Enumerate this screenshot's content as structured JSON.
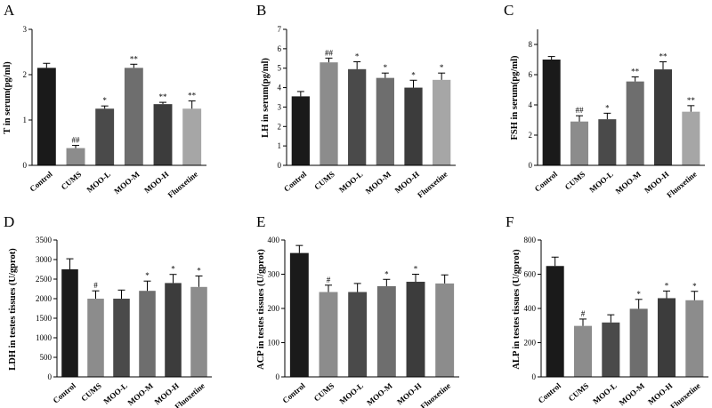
{
  "chart_data": [
    {
      "panel": "A",
      "type": "bar",
      "ylabel": "T in serum(pg/ml)",
      "ylim": [
        0,
        3
      ],
      "yticks": [
        0,
        1,
        2,
        3
      ],
      "categories": [
        "Control",
        "CUMS",
        "MOO-L",
        "MOO-M",
        "MOO-H",
        "Fluoxetine"
      ],
      "values": [
        2.15,
        0.38,
        1.25,
        2.15,
        1.35,
        1.25
      ],
      "errors": [
        0.1,
        0.06,
        0.06,
        0.08,
        0.04,
        0.17
      ],
      "significance": [
        "",
        "##",
        "*",
        "**",
        "**",
        "**"
      ],
      "colors": [
        "#1a1a1a",
        "#8c8c8c",
        "#4a4a4a",
        "#6e6e6e",
        "#3c3c3c",
        "#a6a6a6"
      ]
    },
    {
      "panel": "B",
      "type": "bar",
      "ylabel": "LH in serum(pg/ml)",
      "ylim": [
        0,
        7
      ],
      "yticks": [
        0,
        1,
        2,
        3,
        4,
        5,
        6,
        7
      ],
      "categories": [
        "Control",
        "CUMS",
        "MOO-L",
        "MOO-M",
        "MOO-H",
        "Fluoxetine"
      ],
      "values": [
        3.55,
        5.3,
        4.95,
        4.5,
        4.0,
        4.4
      ],
      "errors": [
        0.25,
        0.22,
        0.38,
        0.25,
        0.38,
        0.35
      ],
      "significance": [
        "",
        "##",
        "*",
        "*",
        "*",
        "*"
      ],
      "colors": [
        "#1a1a1a",
        "#8c8c8c",
        "#4a4a4a",
        "#6e6e6e",
        "#3c3c3c",
        "#a6a6a6"
      ]
    },
    {
      "panel": "C",
      "type": "bar",
      "ylabel": "FSH in serum(pg/ml)",
      "ylim": [
        0,
        9
      ],
      "yticks": [
        0,
        2,
        4,
        6,
        8
      ],
      "categories": [
        "Control",
        "CUMS",
        "MOO-L",
        "MOO-M",
        "MOO-H",
        "Fluoxetine"
      ],
      "values": [
        7.0,
        2.9,
        3.05,
        5.55,
        6.35,
        3.55
      ],
      "errors": [
        0.2,
        0.38,
        0.4,
        0.3,
        0.5,
        0.4
      ],
      "significance": [
        "",
        "##",
        "*",
        "**",
        "**",
        "**"
      ],
      "colors": [
        "#1a1a1a",
        "#8c8c8c",
        "#4a4a4a",
        "#6e6e6e",
        "#3c3c3c",
        "#a6a6a6"
      ]
    },
    {
      "panel": "D",
      "type": "bar",
      "ylabel": "LDH  in  testes tissues  (U/gprot)",
      "ylim": [
        0,
        3500
      ],
      "yticks": [
        0,
        500,
        1000,
        1500,
        2000,
        2500,
        3000,
        3500
      ],
      "categories": [
        "Control",
        "CUMS",
        "MOO-L",
        "MOO-M",
        "MOO-H",
        "Fluoxetine"
      ],
      "values": [
        2750,
        2000,
        2000,
        2200,
        2400,
        2300
      ],
      "errors": [
        270,
        200,
        220,
        250,
        220,
        280
      ],
      "significance": [
        "",
        "#",
        "",
        "*",
        "*",
        "*"
      ],
      "colors": [
        "#1a1a1a",
        "#8c8c8c",
        "#4a4a4a",
        "#6e6e6e",
        "#3c3c3c",
        "#8c8c8c"
      ]
    },
    {
      "panel": "E",
      "type": "bar",
      "ylabel": "ACP  in  testes tissues  (U/gprot)",
      "ylim": [
        0,
        400
      ],
      "yticks": [
        0,
        100,
        200,
        300,
        400
      ],
      "categories": [
        "Control",
        "CUMS",
        "MOO-L",
        "MOO-M",
        "MOO-H",
        "Fluoxetine"
      ],
      "values": [
        362,
        248,
        248,
        265,
        278,
        273
      ],
      "errors": [
        22,
        20,
        25,
        20,
        22,
        25
      ],
      "significance": [
        "",
        "#",
        "",
        "*",
        "*",
        ""
      ],
      "colors": [
        "#1a1a1a",
        "#8c8c8c",
        "#4a4a4a",
        "#6e6e6e",
        "#3c3c3c",
        "#8c8c8c"
      ]
    },
    {
      "panel": "F",
      "type": "bar",
      "ylabel": "ALP  in  testes tissues  (U/gprot)",
      "ylim": [
        0,
        800
      ],
      "yticks": [
        0,
        200,
        400,
        600,
        800
      ],
      "categories": [
        "Control",
        "CUMS",
        "MOO-L",
        "MOO-M",
        "MOO-H",
        "Fluoxetine"
      ],
      "values": [
        648,
        298,
        318,
        398,
        460,
        448
      ],
      "errors": [
        52,
        40,
        45,
        55,
        42,
        52
      ],
      "significance": [
        "",
        "#",
        "",
        "*",
        "*",
        "*"
      ],
      "colors": [
        "#1a1a1a",
        "#8c8c8c",
        "#4a4a4a",
        "#6e6e6e",
        "#3c3c3c",
        "#8c8c8c"
      ]
    }
  ]
}
